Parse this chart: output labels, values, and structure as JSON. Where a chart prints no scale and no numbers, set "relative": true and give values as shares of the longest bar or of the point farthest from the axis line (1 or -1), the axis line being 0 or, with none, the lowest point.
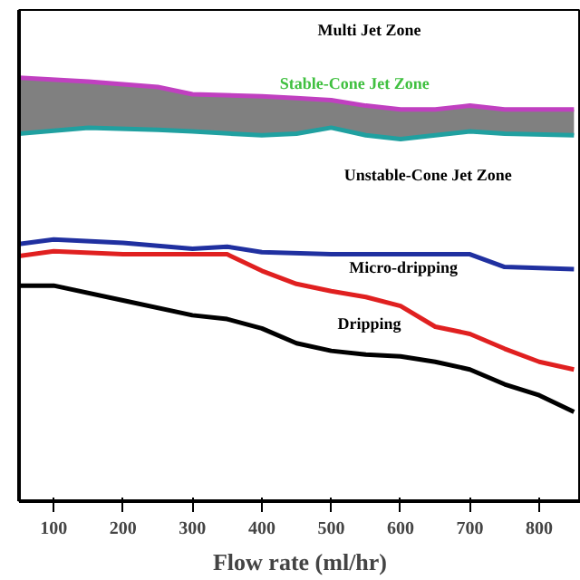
{
  "chart_data": {
    "type": "line",
    "relative": true,
    "xlabel": "Flow rate (ml/hr)",
    "xlim": [
      50,
      860
    ],
    "xticks": [
      100,
      200,
      300,
      400,
      500,
      600,
      700,
      800
    ],
    "grid": false,
    "series": [
      {
        "color": "#c040c0",
        "x": [
          50,
          150,
          250,
          300,
          400,
          450,
          500,
          550,
          600,
          650,
          700,
          750,
          850
        ],
        "values": [
          1.0,
          0.991,
          0.978,
          0.961,
          0.956,
          0.952,
          0.947,
          0.934,
          0.925,
          0.925,
          0.934,
          0.925,
          0.925
        ]
      },
      {
        "color": "#20a0a0",
        "x": [
          50,
          150,
          250,
          300,
          400,
          450,
          500,
          550,
          600,
          650,
          700,
          750,
          850
        ],
        "values": [
          0.868,
          0.882,
          0.877,
          0.873,
          0.864,
          0.868,
          0.882,
          0.864,
          0.855,
          0.864,
          0.873,
          0.868,
          0.864
        ],
        "lower": [
          0.868,
          0.882,
          0.877,
          0.873,
          0.864,
          0.868,
          0.882,
          0.864,
          0.855,
          0.864,
          0.873,
          0.868,
          0.864
        ],
        "upper": [
          1.0,
          0.991,
          0.978,
          0.961,
          0.956,
          0.952,
          0.947,
          0.934,
          0.925,
          0.925,
          0.934,
          0.925,
          0.925
        ]
      },
      {
        "color": "#2030a0",
        "x": [
          50,
          100,
          200,
          300,
          350,
          400,
          500,
          700,
          750,
          850
        ],
        "values": [
          0.607,
          0.618,
          0.61,
          0.596,
          0.601,
          0.588,
          0.583,
          0.583,
          0.553,
          0.548
        ]
      },
      {
        "color": "#e02020",
        "x": [
          50,
          100,
          200,
          350,
          400,
          450,
          500,
          550,
          600,
          650,
          700,
          750,
          800,
          850
        ],
        "values": [
          0.579,
          0.59,
          0.583,
          0.583,
          0.544,
          0.513,
          0.496,
          0.482,
          0.461,
          0.412,
          0.395,
          0.36,
          0.329,
          0.311
        ]
      },
      {
        "color": "#000000",
        "x": [
          50,
          100,
          200,
          300,
          350,
          400,
          450,
          500,
          550,
          600,
          650,
          700,
          750,
          800,
          850
        ],
        "values": [
          0.509,
          0.509,
          0.474,
          0.439,
          0.43,
          0.408,
          0.373,
          0.355,
          0.346,
          0.342,
          0.329,
          0.311,
          0.276,
          0.25,
          0.211
        ]
      }
    ],
    "annotations": [
      "Multi Jet Zone",
      "Stable-Cone Jet Zone",
      "Unstable-Cone Jet Zone",
      "Micro-dripping",
      "Dripping"
    ]
  }
}
